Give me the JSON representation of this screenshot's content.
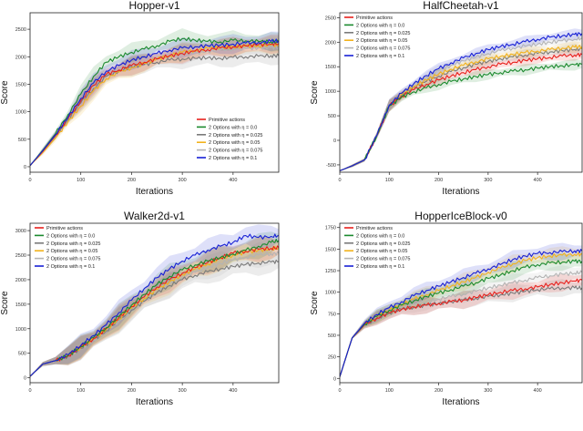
{
  "figure": {
    "colors": {
      "primitive": "#e8211d",
      "eta0": "#1b8a2e",
      "eta1": "#7a7a7a",
      "eta2": "#f2b21c",
      "eta3": "#b4b4b4",
      "eta4": "#1720d6"
    }
  },
  "chart_data": [
    {
      "type": "line",
      "title": "Hopper-v1",
      "xlabel": "Iterations",
      "ylabel": "Score",
      "xlim": [
        0,
        490
      ],
      "ylim": [
        -100,
        2800
      ],
      "xticks": [
        0,
        100,
        200,
        300,
        400
      ],
      "yticks": [
        0,
        500,
        1000,
        1500,
        2000,
        2500
      ],
      "legend_position": "bottom-right",
      "x": [
        0,
        25,
        50,
        75,
        100,
        125,
        150,
        175,
        200,
        225,
        250,
        275,
        300,
        325,
        350,
        375,
        400,
        425,
        450,
        475,
        490
      ],
      "series": [
        {
          "name": "Primitive actions",
          "color_key": "primitive",
          "values": [
            20,
            280,
            570,
            880,
            1200,
            1480,
            1680,
            1760,
            1840,
            1900,
            1960,
            2020,
            2060,
            2100,
            2130,
            2160,
            2180,
            2200,
            2220,
            2230,
            2240
          ]
        },
        {
          "name": "2 Options with η = 0.0",
          "color_key": "eta0",
          "values": [
            20,
            300,
            600,
            950,
            1320,
            1640,
            1900,
            2000,
            2080,
            2140,
            2200,
            2280,
            2330,
            2300,
            2280,
            2270,
            2300,
            2290,
            2280,
            2270,
            2270
          ]
        },
        {
          "name": "2 Options with η = 0.025",
          "color_key": "eta1",
          "values": [
            20,
            280,
            560,
            860,
            1160,
            1420,
            1640,
            1740,
            1820,
            1860,
            1900,
            1940,
            1960,
            1970,
            1980,
            1970,
            1990,
            2000,
            2010,
            2020,
            2020
          ]
        },
        {
          "name": "2 Options with η = 0.05",
          "color_key": "eta2",
          "values": [
            20,
            260,
            520,
            820,
            1100,
            1380,
            1600,
            1720,
            1800,
            1880,
            1960,
            2020,
            2080,
            2120,
            2150,
            2170,
            2180,
            2190,
            2200,
            2210,
            2210
          ]
        },
        {
          "name": "2 Options with η = 0.075",
          "color_key": "eta3",
          "values": [
            20,
            280,
            560,
            870,
            1180,
            1450,
            1660,
            1760,
            1840,
            1900,
            1950,
            2000,
            2040,
            2070,
            2100,
            2120,
            2140,
            2150,
            2160,
            2170,
            2170
          ]
        },
        {
          "name": "2 Options with η = 0.1",
          "color_key": "eta4",
          "values": [
            20,
            290,
            580,
            900,
            1240,
            1520,
            1740,
            1840,
            1940,
            2000,
            2060,
            2120,
            2160,
            2180,
            2200,
            2210,
            2230,
            2250,
            2260,
            2280,
            2290
          ]
        }
      ]
    },
    {
      "type": "line",
      "title": "HalfCheetah-v1",
      "xlabel": "Iterations",
      "ylabel": "Score",
      "xlim": [
        0,
        490
      ],
      "ylim": [
        -650,
        2600
      ],
      "xticks": [
        0,
        100,
        200,
        300,
        400
      ],
      "yticks": [
        -500,
        0,
        500,
        1000,
        1500,
        2000,
        2500
      ],
      "legend_position": "top-left",
      "x": [
        0,
        25,
        50,
        75,
        100,
        125,
        150,
        175,
        200,
        225,
        250,
        275,
        300,
        325,
        350,
        375,
        400,
        425,
        450,
        475,
        490
      ],
      "series": [
        {
          "name": "Primitive actions",
          "color_key": "primitive",
          "values": [
            -620,
            -520,
            -400,
            100,
            700,
            900,
            1030,
            1140,
            1230,
            1310,
            1380,
            1440,
            1500,
            1550,
            1590,
            1630,
            1660,
            1690,
            1720,
            1740,
            1750
          ]
        },
        {
          "name": "2 Options with η = 0.0",
          "color_key": "eta0",
          "values": [
            -620,
            -520,
            -400,
            100,
            700,
            880,
            990,
            1070,
            1140,
            1200,
            1250,
            1300,
            1340,
            1380,
            1410,
            1440,
            1470,
            1500,
            1520,
            1540,
            1550
          ]
        },
        {
          "name": "2 Options with η = 0.025",
          "color_key": "eta1",
          "values": [
            -620,
            -520,
            -400,
            100,
            710,
            920,
            1080,
            1200,
            1310,
            1400,
            1480,
            1550,
            1610,
            1660,
            1700,
            1740,
            1770,
            1800,
            1830,
            1850,
            1860
          ]
        },
        {
          "name": "2 Options with η = 0.05",
          "color_key": "eta2",
          "values": [
            -620,
            -520,
            -400,
            100,
            710,
            930,
            1100,
            1230,
            1350,
            1450,
            1530,
            1600,
            1660,
            1710,
            1750,
            1790,
            1820,
            1850,
            1880,
            1900,
            1910
          ]
        },
        {
          "name": "2 Options with η = 0.075",
          "color_key": "eta3",
          "values": [
            -620,
            -520,
            -400,
            100,
            720,
            950,
            1140,
            1290,
            1420,
            1530,
            1620,
            1700,
            1770,
            1830,
            1880,
            1920,
            1960,
            2000,
            2030,
            2060,
            2080
          ]
        },
        {
          "name": "2 Options with η = 0.1",
          "color_key": "eta4",
          "values": [
            -620,
            -520,
            -400,
            100,
            720,
            960,
            1160,
            1320,
            1460,
            1580,
            1680,
            1770,
            1850,
            1910,
            1960,
            2010,
            2060,
            2100,
            2130,
            2160,
            2180
          ]
        }
      ]
    },
    {
      "type": "line",
      "title": "Walker2d-v1",
      "xlabel": "Iterations",
      "ylabel": "Score",
      "xlim": [
        0,
        490
      ],
      "ylim": [
        -100,
        3150
      ],
      "xticks": [
        0,
        100,
        200,
        300,
        400
      ],
      "yticks": [
        0,
        500,
        1000,
        1500,
        2000,
        2500,
        3000
      ],
      "legend_position": "top-left",
      "x": [
        0,
        25,
        50,
        75,
        100,
        125,
        150,
        175,
        200,
        225,
        250,
        275,
        300,
        325,
        350,
        375,
        400,
        425,
        450,
        475,
        490
      ],
      "series": [
        {
          "name": "Primitive actions",
          "color_key": "primitive",
          "values": [
            30,
            280,
            350,
            450,
            620,
            800,
            1000,
            1230,
            1450,
            1650,
            1850,
            2000,
            2130,
            2250,
            2350,
            2450,
            2540,
            2580,
            2620,
            2640,
            2650
          ]
        },
        {
          "name": "2 Options with η = 0.0",
          "color_key": "eta0",
          "values": [
            30,
            280,
            350,
            460,
            640,
            820,
            1020,
            1250,
            1480,
            1700,
            1900,
            2070,
            2200,
            2300,
            2380,
            2450,
            2520,
            2600,
            2680,
            2760,
            2800
          ]
        },
        {
          "name": "2 Options with η = 0.025",
          "color_key": "eta1",
          "values": [
            30,
            280,
            350,
            440,
            600,
            780,
            960,
            1180,
            1380,
            1560,
            1740,
            1880,
            2000,
            2090,
            2160,
            2220,
            2270,
            2310,
            2340,
            2360,
            2370
          ]
        },
        {
          "name": "2 Options with η = 0.05",
          "color_key": "eta2",
          "values": [
            30,
            280,
            350,
            450,
            620,
            790,
            980,
            1200,
            1420,
            1620,
            1800,
            1960,
            2100,
            2220,
            2320,
            2420,
            2500,
            2560,
            2600,
            2630,
            2650
          ]
        },
        {
          "name": "2 Options with η = 0.075",
          "color_key": "eta3",
          "values": [
            30,
            280,
            350,
            440,
            600,
            770,
            950,
            1160,
            1360,
            1560,
            1740,
            1900,
            2040,
            2150,
            2250,
            2330,
            2400,
            2460,
            2500,
            2530,
            2540
          ]
        },
        {
          "name": "2 Options with η = 0.1",
          "color_key": "eta4",
          "values": [
            30,
            280,
            350,
            470,
            660,
            860,
            1080,
            1330,
            1580,
            1820,
            2040,
            2220,
            2380,
            2500,
            2600,
            2680,
            2760,
            2900,
            2860,
            2880,
            2900
          ]
        }
      ]
    },
    {
      "type": "line",
      "title": "HopperIceBlock-v0",
      "xlabel": "Iterations",
      "ylabel": "Score",
      "xlim": [
        0,
        490
      ],
      "ylim": [
        -50,
        1800
      ],
      "xticks": [
        0,
        100,
        200,
        300,
        400
      ],
      "yticks": [
        0,
        250,
        500,
        750,
        1000,
        1250,
        1500,
        1750
      ],
      "legend_position": "top-left",
      "x": [
        0,
        25,
        50,
        75,
        100,
        125,
        150,
        175,
        200,
        225,
        250,
        275,
        300,
        325,
        350,
        375,
        400,
        425,
        450,
        475,
        490
      ],
      "series": [
        {
          "name": "Primitive actions",
          "color_key": "primitive",
          "values": [
            20,
            470,
            620,
            700,
            760,
            800,
            830,
            850,
            870,
            890,
            910,
            940,
            970,
            1000,
            1020,
            1040,
            1060,
            1090,
            1110,
            1130,
            1140
          ]
        },
        {
          "name": "2 Options with η = 0.0",
          "color_key": "eta0",
          "values": [
            20,
            470,
            630,
            720,
            790,
            850,
            900,
            950,
            990,
            1030,
            1070,
            1110,
            1160,
            1200,
            1250,
            1290,
            1320,
            1340,
            1350,
            1360,
            1360
          ]
        },
        {
          "name": "2 Options with η = 0.025",
          "color_key": "eta1",
          "values": [
            20,
            470,
            620,
            700,
            760,
            800,
            830,
            850,
            870,
            890,
            910,
            930,
            950,
            970,
            990,
            1010,
            1030,
            1040,
            1050,
            1050,
            1050
          ]
        },
        {
          "name": "2 Options with η = 0.05",
          "color_key": "eta2",
          "values": [
            20,
            470,
            630,
            720,
            790,
            860,
            920,
            970,
            1020,
            1070,
            1120,
            1170,
            1230,
            1280,
            1330,
            1370,
            1400,
            1420,
            1430,
            1440,
            1440
          ]
        },
        {
          "name": "2 Options with η = 0.075",
          "color_key": "eta3",
          "values": [
            20,
            470,
            620,
            710,
            770,
            820,
            860,
            890,
            920,
            950,
            980,
            1010,
            1050,
            1080,
            1110,
            1140,
            1170,
            1190,
            1210,
            1220,
            1230
          ]
        },
        {
          "name": "2 Options with η = 0.1",
          "color_key": "eta4",
          "values": [
            20,
            470,
            640,
            740,
            820,
            890,
            960,
            1020,
            1070,
            1120,
            1170,
            1220,
            1270,
            1320,
            1380,
            1420,
            1450,
            1460,
            1470,
            1480,
            1480
          ]
        }
      ]
    }
  ]
}
